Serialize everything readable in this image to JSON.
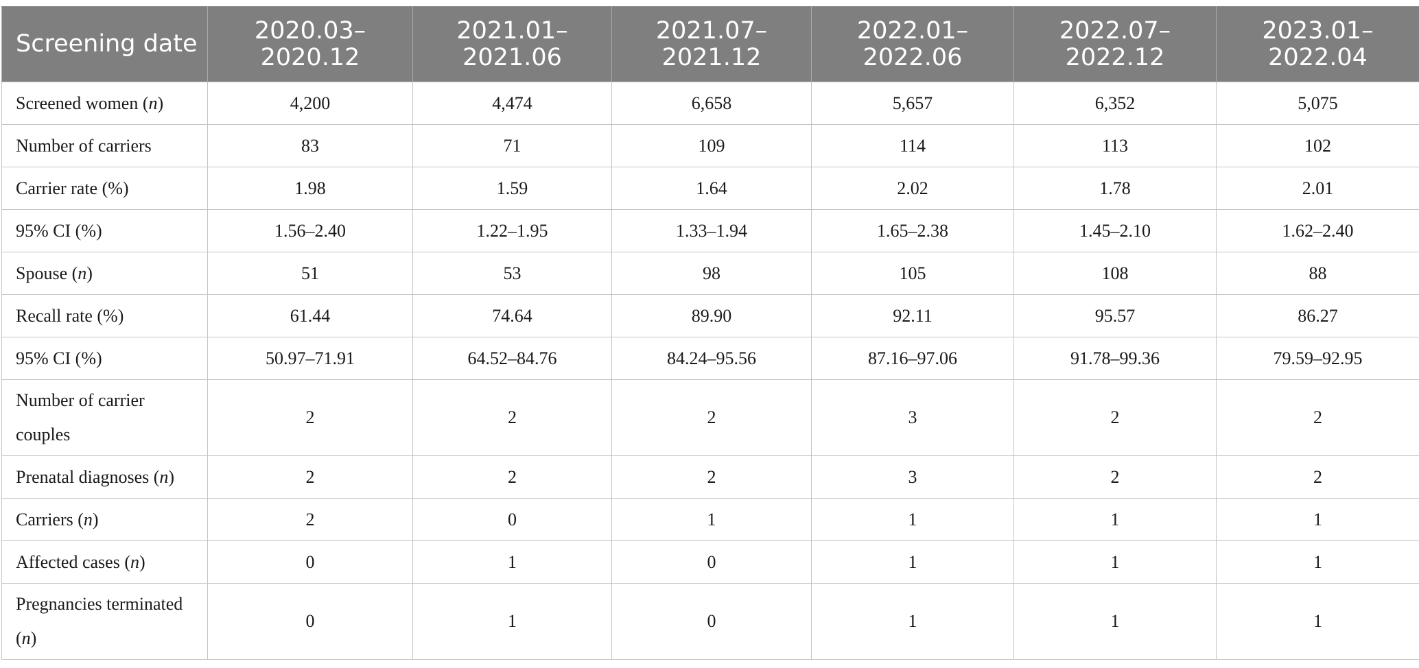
{
  "table": {
    "headers": [
      "Screening date",
      [
        "2020.03–",
        "2020.12"
      ],
      [
        "2021.01–",
        "2021.06"
      ],
      [
        "2021.07–",
        "2021.12"
      ],
      [
        "2022.01–",
        "2022.06"
      ],
      [
        "2022.07–",
        "2022.12"
      ],
      [
        "2023.01–",
        "2022.04"
      ]
    ],
    "rows": [
      {
        "label": [
          "Screened women (",
          "n",
          ")"
        ],
        "values": [
          "4,200",
          "4,474",
          "6,658",
          "5,657",
          "6,352",
          "5,075"
        ]
      },
      {
        "label": [
          "Number of carriers"
        ],
        "values": [
          "83",
          "71",
          "109",
          "114",
          "113",
          "102"
        ]
      },
      {
        "label": [
          "Carrier rate (%)"
        ],
        "values": [
          "1.98",
          "1.59",
          "1.64",
          "2.02",
          "1.78",
          "2.01"
        ]
      },
      {
        "label": [
          "95% CI (%)"
        ],
        "values": [
          "1.56–2.40",
          "1.22–1.95",
          "1.33–1.94",
          "1.65–2.38",
          "1.45–2.10",
          "1.62–2.40"
        ]
      },
      {
        "label": [
          "Spouse (",
          "n",
          ")"
        ],
        "values": [
          "51",
          "53",
          "98",
          "105",
          "108",
          "88"
        ]
      },
      {
        "label": [
          "Recall rate (%)"
        ],
        "values": [
          "61.44",
          "74.64",
          "89.90",
          "92.11",
          "95.57",
          "86.27"
        ]
      },
      {
        "label": [
          "95% CI (%)"
        ],
        "values": [
          "50.97–71.91",
          "64.52–84.76",
          "84.24–95.56",
          "87.16–97.06",
          "91.78–99.36",
          "79.59–92.95"
        ]
      },
      {
        "label": [
          "Number of carrier couples"
        ],
        "values": [
          "2",
          "2",
          "2",
          "3",
          "2",
          "2"
        ],
        "tall": true
      },
      {
        "label": [
          "Prenatal diagnoses (",
          "n",
          ")"
        ],
        "values": [
          "2",
          "2",
          "2",
          "3",
          "2",
          "2"
        ]
      },
      {
        "label": [
          "Carriers (",
          "n",
          ")"
        ],
        "values": [
          "2",
          "0",
          "1",
          "1",
          "1",
          "1"
        ]
      },
      {
        "label": [
          "Affected cases (",
          "n",
          ")"
        ],
        "values": [
          "0",
          "1",
          "0",
          "1",
          "1",
          "1"
        ]
      },
      {
        "label": [
          "Pregnancies terminated (",
          "n",
          ")"
        ],
        "values": [
          "0",
          "1",
          "0",
          "1",
          "1",
          "1"
        ],
        "tall": true
      }
    ]
  }
}
